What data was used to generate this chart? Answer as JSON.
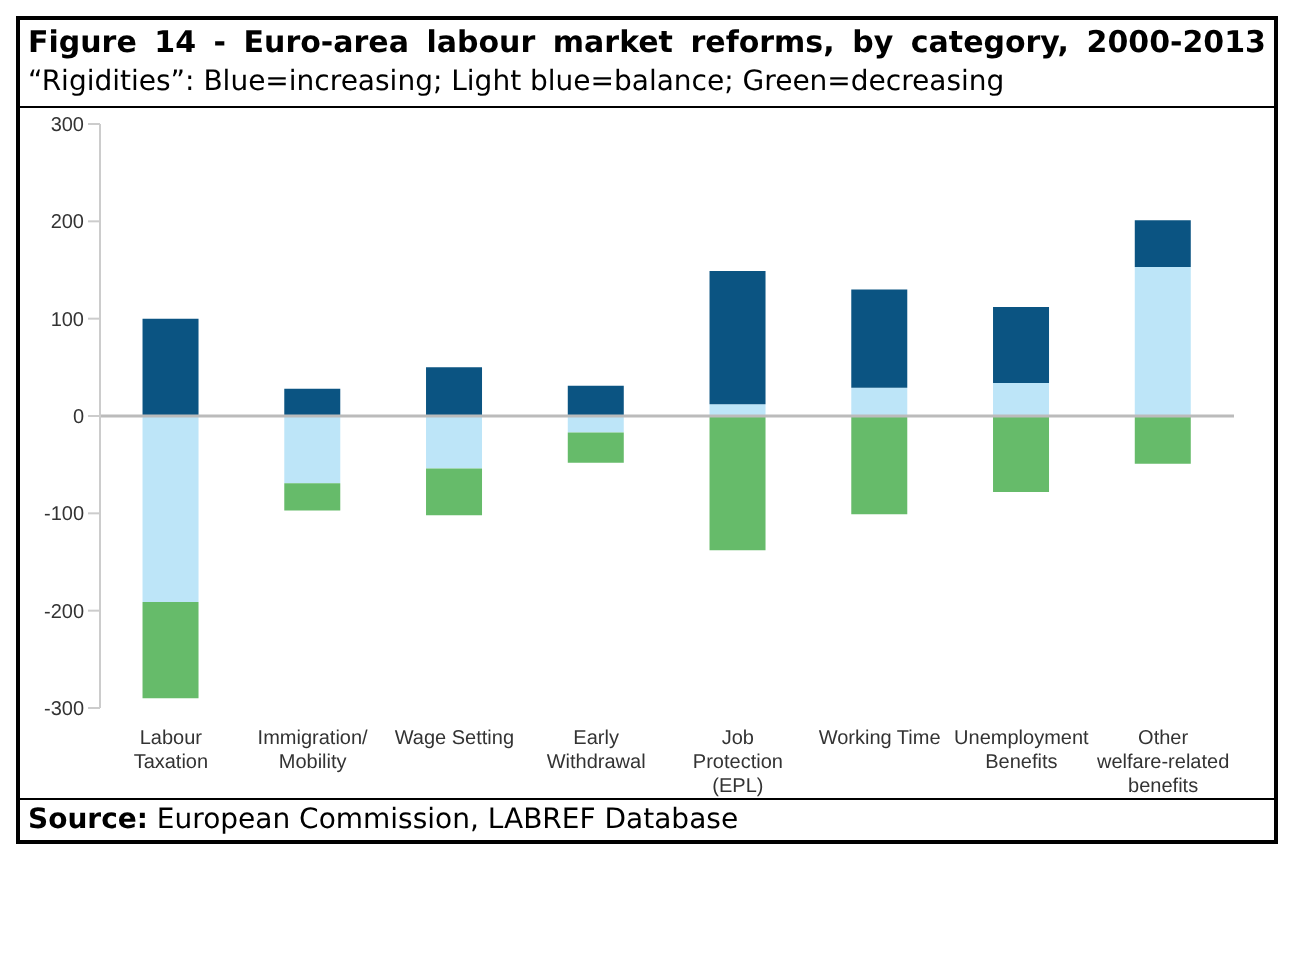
{
  "chart_data": {
    "type": "bar",
    "title": "Figure 14 - Euro-area labour market reforms, by category, 2000-2013",
    "subtitle": "“Rigidities”:  Blue=increasing;  Light blue=balance;  Green=decreasing",
    "annotations": [
      "Source: European Commission, LABREF Database"
    ],
    "categories": [
      "Labour Taxation",
      "Immigration/Mobility",
      "Wage Setting",
      "Early Withdrawal",
      "Job Protection (EPL)",
      "Working Time",
      "Unemployment Benefits",
      "Other welfare-related benefits"
    ],
    "stacked": true,
    "series": [
      {
        "color": "#bde5f8",
        "values": [
          -191,
          -69,
          -54,
          -17,
          12,
          29,
          34,
          153
        ]
      },
      {
        "color": "#0b5482",
        "values": [
          100,
          28,
          50,
          31,
          137,
          101,
          78,
          48
        ]
      },
      {
        "color": "#66bb6a",
        "values": [
          -99,
          -28,
          -48,
          -31,
          -138,
          -101,
          -78,
          -49
        ]
      }
    ],
    "ylim": [
      -300,
      300
    ],
    "yticks": [
      -300,
      -200,
      -100,
      0,
      100,
      200,
      300
    ],
    "grid": false,
    "legend": false,
    "ref_lines": [
      {
        "axis": "y",
        "value": 0,
        "color": "#bbbbbb"
      }
    ]
  }
}
